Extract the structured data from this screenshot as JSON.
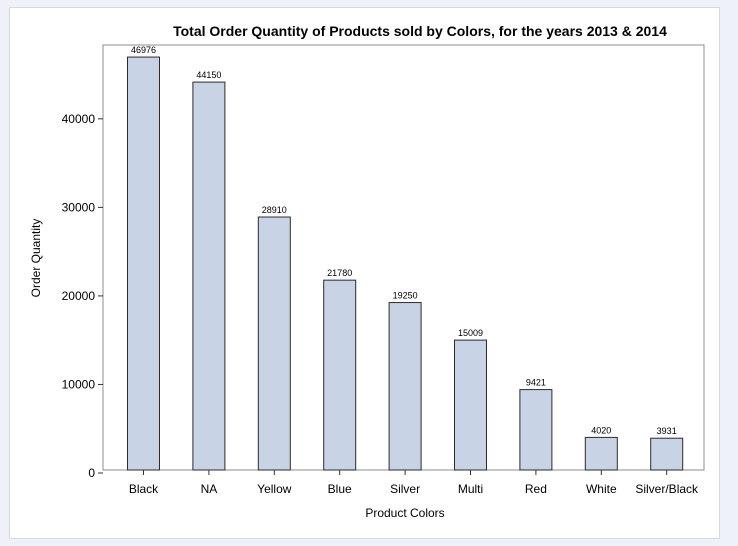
{
  "chart_data": {
    "type": "bar",
    "title": "Total Order Quantity of Products sold by Colors, for the years 2013 & 2014",
    "xlabel": "Product Colors",
    "ylabel": "Order Quantity",
    "categories": [
      "Black",
      "NA",
      "Yellow",
      "Blue",
      "Silver",
      "Multi",
      "Red",
      "White",
      "Silver/Black"
    ],
    "values": [
      46976,
      44150,
      28910,
      21780,
      19250,
      15009,
      9421,
      4020,
      3931
    ],
    "ylim": [
      0,
      48000
    ],
    "yticks": [
      0,
      10000,
      20000,
      30000,
      40000
    ],
    "grid": false,
    "legend": "none",
    "colors": {
      "bar_fill": "#c8d3e5",
      "bar_stroke": "#2b2b2b",
      "frame": "#8c8c8c"
    }
  }
}
